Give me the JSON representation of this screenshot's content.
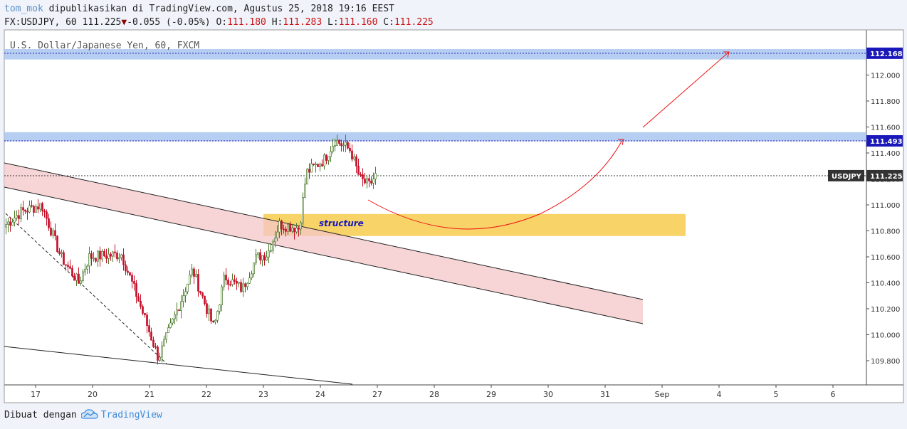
{
  "header": {
    "author": "tom_mok",
    "published_text": " dipublikasikan di TradingView.com, Agustus 25, 2018 19:16 EEST",
    "symbol_line": "FX:USDJPY, 60 111.225",
    "change": "-0.055 (-0.05%)",
    "o_label": "O:",
    "o_value": "111.180",
    "h_label": "H:",
    "h_value": "111.283",
    "l_label": "L:",
    "l_value": "111.160",
    "c_label": "C:",
    "c_value": "111.225"
  },
  "footer": {
    "made_with": "Dibuat dengan",
    "brand": "TradingView",
    "logo_icon": "tradingview-cloud-icon"
  },
  "colors": {
    "candle_up": "#4a7a2a",
    "candle_down": "#c4112a",
    "zone_blue": "#a9c5ef",
    "channel_fill": "#f4c7c9",
    "structure_fill": "#f5c842",
    "arrow_red": "#e11",
    "last_price_bg": "#333333",
    "level_label_bg": "#1a18b8"
  },
  "chart_data": {
    "type": "candlestick",
    "instrument_title": "U.S. Dollar/Japanese Yen, 60, FXCM",
    "timeframe_minutes": 60,
    "ylim": [
      109.6,
      112.25
    ],
    "y_ticks": [
      "109.800",
      "110.000",
      "110.200",
      "110.400",
      "110.600",
      "110.800",
      "111.000",
      "111.200",
      "111.400",
      "111.600",
      "111.800",
      "112.000"
    ],
    "x_ticks": [
      "17",
      "20",
      "21",
      "22",
      "23",
      "24",
      "27",
      "28",
      "29",
      "30",
      "31",
      "Sep",
      "4",
      "5",
      "6"
    ],
    "symbol_tag": "USDJPY",
    "last_price": "111.225",
    "levels": [
      {
        "label": "112.168",
        "price": 112.168
      },
      {
        "label": "111.493",
        "price": 111.493
      }
    ],
    "resistance_zones": [
      {
        "from": 112.12,
        "to": 112.2
      },
      {
        "from": 111.49,
        "to": 111.56
      }
    ],
    "structure_zone": {
      "label": "structure",
      "from": 110.76,
      "to": 110.93,
      "x_from": "23",
      "x_to": "Sep"
    },
    "candles_close_path": [
      {
        "day": "17",
        "close": 110.9
      },
      {
        "day": "17",
        "close": 111.05
      },
      {
        "day": "20",
        "close": 110.4
      },
      {
        "day": "20",
        "close": 110.65
      },
      {
        "day": "21",
        "close": 110.2
      },
      {
        "day": "21",
        "close": 109.8
      },
      {
        "day": "21",
        "close": 110.1
      },
      {
        "day": "22",
        "close": 110.5
      },
      {
        "day": "22",
        "close": 110.1
      },
      {
        "day": "22",
        "close": 110.5
      },
      {
        "day": "23",
        "close": 110.6
      },
      {
        "day": "23",
        "close": 110.85
      },
      {
        "day": "23",
        "close": 110.85
      },
      {
        "day": "24",
        "close": 111.3
      },
      {
        "day": "24",
        "close": 111.45
      },
      {
        "day": "24",
        "close": 111.45
      },
      {
        "day": "27",
        "close": 111.2
      },
      {
        "day": "27",
        "close": 111.225
      }
    ],
    "projection": [
      "111.05",
      "110.83",
      "111.49",
      "112.16"
    ]
  }
}
